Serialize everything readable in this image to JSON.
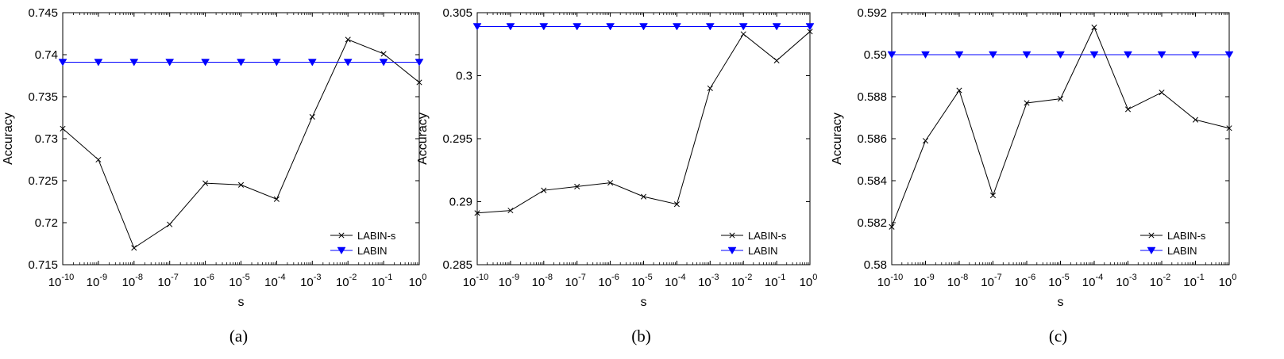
{
  "chart_data": [
    {
      "type": "line",
      "caption": "(a)",
      "xlabel": "s",
      "ylabel": "Accuracy",
      "x_tick_base": "10",
      "x_tick_exponents": [
        "-10",
        "-9",
        "-8",
        "-7",
        "-6",
        "-5",
        "-4",
        "-3",
        "-2",
        "-1",
        "0"
      ],
      "x": [
        1e-10,
        1e-09,
        1e-08,
        1e-07,
        1e-06,
        1e-05,
        0.0001,
        0.001,
        0.01,
        0.1,
        1
      ],
      "x_scale": "log",
      "ylim": [
        0.715,
        0.745
      ],
      "y_ticks": [
        "0.715",
        "0.72",
        "0.725",
        "0.73",
        "0.735",
        "0.74",
        "0.745"
      ],
      "legend_position": "bottom-right",
      "grid": false,
      "series": [
        {
          "name": "LABIN-s",
          "color": "#000000",
          "marker": "x",
          "values": [
            0.7312,
            0.7275,
            0.717,
            0.7198,
            0.7247,
            0.7245,
            0.7228,
            0.7326,
            0.7418,
            0.7401,
            0.7367
          ]
        },
        {
          "name": "LABIN",
          "color": "#0000ff",
          "marker": "triangle-down",
          "values": [
            0.7391,
            0.7391,
            0.7391,
            0.7391,
            0.7391,
            0.7391,
            0.7391,
            0.7391,
            0.7391,
            0.7391,
            0.7391
          ]
        }
      ]
    },
    {
      "type": "line",
      "caption": "(b)",
      "xlabel": "s",
      "ylabel": "Accuracy",
      "x_tick_base": "10",
      "x_tick_exponents": [
        "-10",
        "-9",
        "-8",
        "-7",
        "-6",
        "-5",
        "-4",
        "-3",
        "-2",
        "-1",
        "0"
      ],
      "x": [
        1e-10,
        1e-09,
        1e-08,
        1e-07,
        1e-06,
        1e-05,
        0.0001,
        0.001,
        0.01,
        0.1,
        1
      ],
      "x_scale": "log",
      "ylim": [
        0.285,
        0.305
      ],
      "y_ticks": [
        "0.285",
        "0.29",
        "0.295",
        "0.3",
        "0.305"
      ],
      "legend_position": "bottom-right",
      "grid": false,
      "series": [
        {
          "name": "LABIN-s",
          "color": "#000000",
          "marker": "x",
          "values": [
            0.2891,
            0.2893,
            0.2909,
            0.2912,
            0.2915,
            0.2904,
            0.2898,
            0.299,
            0.3033,
            0.3012,
            0.3035
          ]
        },
        {
          "name": "LABIN",
          "color": "#0000ff",
          "marker": "triangle-down",
          "values": [
            0.3039,
            0.3039,
            0.3039,
            0.3039,
            0.3039,
            0.3039,
            0.3039,
            0.3039,
            0.3039,
            0.3039,
            0.3039
          ]
        }
      ]
    },
    {
      "type": "line",
      "caption": "(c)",
      "xlabel": "s",
      "ylabel": "Accuracy",
      "x_tick_base": "10",
      "x_tick_exponents": [
        "-10",
        "-9",
        "-8",
        "-7",
        "-6",
        "-5",
        "-4",
        "-3",
        "-2",
        "-1",
        "0"
      ],
      "x": [
        1e-10,
        1e-09,
        1e-08,
        1e-07,
        1e-06,
        1e-05,
        0.0001,
        0.001,
        0.01,
        0.1,
        1
      ],
      "x_scale": "log",
      "ylim": [
        0.58,
        0.592
      ],
      "y_ticks": [
        "0.58",
        "0.582",
        "0.584",
        "0.586",
        "0.588",
        "0.59",
        "0.592"
      ],
      "legend_position": "bottom-right",
      "grid": false,
      "series": [
        {
          "name": "LABIN-s",
          "color": "#000000",
          "marker": "x",
          "values": [
            0.5818,
            0.5859,
            0.5883,
            0.5833,
            0.5877,
            0.5879,
            0.5913,
            0.5874,
            0.5882,
            0.5869,
            0.5865
          ]
        },
        {
          "name": "LABIN",
          "color": "#0000ff",
          "marker": "triangle-down",
          "values": [
            0.59,
            0.59,
            0.59,
            0.59,
            0.59,
            0.59,
            0.59,
            0.59,
            0.59,
            0.59,
            0.59
          ]
        }
      ]
    }
  ]
}
